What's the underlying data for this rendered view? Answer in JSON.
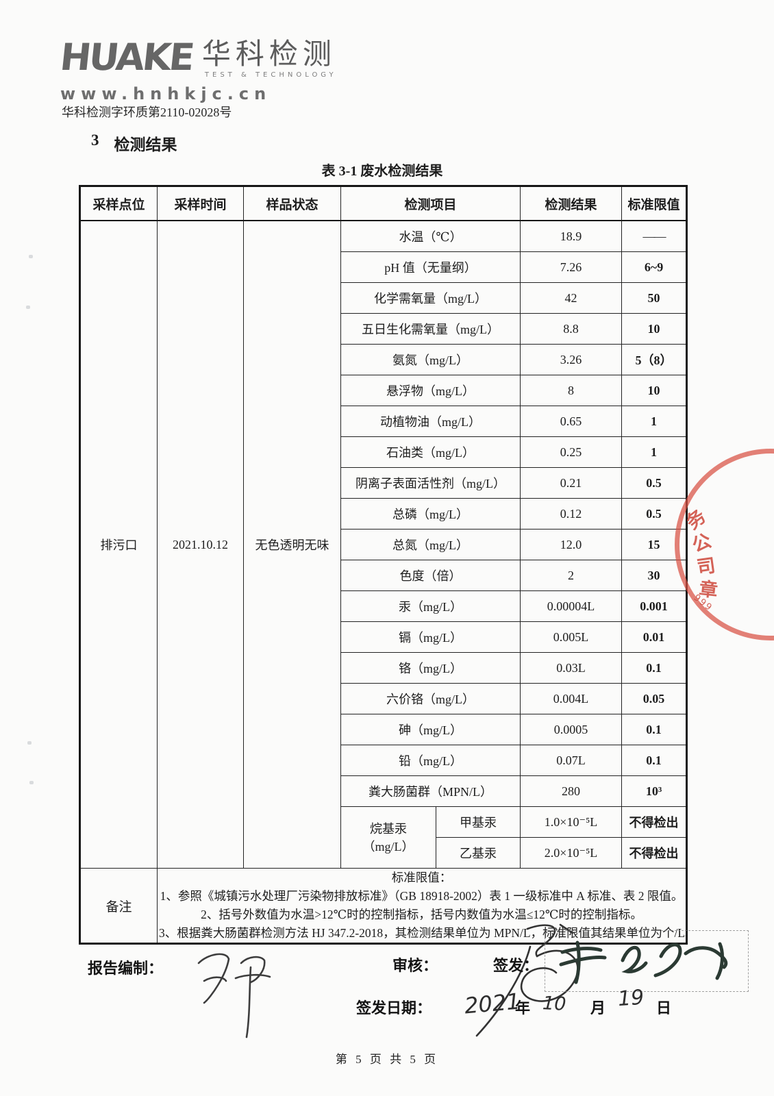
{
  "logo": {
    "brand": "HUAKE",
    "brand_cn": "华科检测",
    "tagline": "TEST & TECHNOLOGY",
    "website": "www.hnhkjc.cn"
  },
  "page": {
    "doc_number": "华科检测字环质第2110-02028号",
    "footer": "第 5 页 共 5 页"
  },
  "section": {
    "number": "3",
    "title": "检测结果"
  },
  "table": {
    "caption": "表 3-1 废水检测结果",
    "headers": [
      "采样点位",
      "采样时间",
      "样品状态",
      "检测项目",
      "检测结果",
      "标准限值"
    ],
    "sample": {
      "point": "排污口",
      "time": "2021.10.12",
      "state": "无色透明无味"
    },
    "rows": [
      {
        "item": "水温（℃）",
        "result": "18.9",
        "limit": "——",
        "dash": true
      },
      {
        "item": "pH 值（无量纲）",
        "result": "7.26",
        "limit": "6~9"
      },
      {
        "item": "化学需氧量（mg/L）",
        "result": "42",
        "limit": "50"
      },
      {
        "item": "五日生化需氧量（mg/L）",
        "result": "8.8",
        "limit": "10"
      },
      {
        "item": "氨氮（mg/L）",
        "result": "3.26",
        "limit": "5（8）"
      },
      {
        "item": "悬浮物（mg/L）",
        "result": "8",
        "limit": "10"
      },
      {
        "item": "动植物油（mg/L）",
        "result": "0.65",
        "limit": "1"
      },
      {
        "item": "石油类（mg/L）",
        "result": "0.25",
        "limit": "1"
      },
      {
        "item": "阴离子表面活性剂（mg/L）",
        "result": "0.21",
        "limit": "0.5"
      },
      {
        "item": "总磷（mg/L）",
        "result": "0.12",
        "limit": "0.5"
      },
      {
        "item": "总氮（mg/L）",
        "result": "12.0",
        "limit": "15"
      },
      {
        "item": "色度（倍）",
        "result": "2",
        "limit": "30"
      },
      {
        "item": "汞（mg/L）",
        "result": "0.00004L",
        "limit": "0.001"
      },
      {
        "item": "镉（mg/L）",
        "result": "0.005L",
        "limit": "0.01"
      },
      {
        "item": "铬（mg/L）",
        "result": "0.03L",
        "limit": "0.1"
      },
      {
        "item": "六价铬（mg/L）",
        "result": "0.004L",
        "limit": "0.05"
      },
      {
        "item": "砷（mg/L）",
        "result": "0.0005",
        "limit": "0.1"
      },
      {
        "item": "铅（mg/L）",
        "result": "0.07L",
        "limit": "0.1"
      },
      {
        "item": "粪大肠菌群（MPN/L）",
        "result": "280",
        "limit": "10³"
      }
    ],
    "group": {
      "label_line1": "烷基汞",
      "label_line2": "（mg/L）",
      "subrows": [
        {
          "item": "甲基汞",
          "result": "1.0×10⁻⁵L",
          "limit": "不得检出"
        },
        {
          "item": "乙基汞",
          "result": "2.0×10⁻⁵L",
          "limit": "不得检出"
        }
      ]
    },
    "remark_label": "备注",
    "remarks": [
      "标准限值：",
      "1、参照《城镇污水处理厂污染物排放标准》（GB 18918-2002）表 1 一级标准中 A 标准、表 2 限值。",
      "2、括号外数值为水温>12℃时的控制指标，括号内数值为水温≤12℃时的控制指标。",
      "3、根据粪大肠菌群检测方法 HJ 347.2-2018，其检测结果单位为 MPN/L，标准限值其结果单位为个/L。"
    ]
  },
  "signatures": {
    "prepared_label": "报告编制：",
    "review_label": "审核：",
    "issue_label": "签发：",
    "date_label": "签发日期：",
    "date_year": "2021",
    "date_month": "10",
    "date_day": "19",
    "year_unit": "年",
    "month_unit": "月",
    "day_unit": "日"
  },
  "stamp": {
    "chars": [
      "务",
      "公",
      "司",
      "章"
    ],
    "digits": "999",
    "color": "#d85042"
  }
}
